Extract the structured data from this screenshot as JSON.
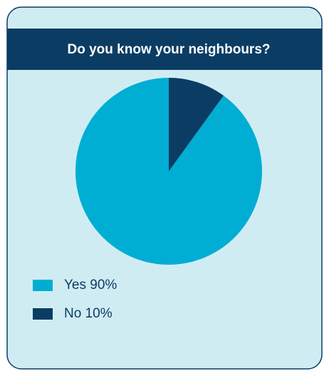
{
  "chart_data": {
    "type": "pie",
    "title": "Do you know your neighbours?",
    "categories": [
      "Yes",
      "No"
    ],
    "values": [
      90,
      10
    ],
    "value_labels": [
      "90%",
      "10%"
    ],
    "colors": [
      "#00aed3",
      "#0b3d64"
    ],
    "start": "top",
    "direction": "clockwise-reverse"
  }
}
